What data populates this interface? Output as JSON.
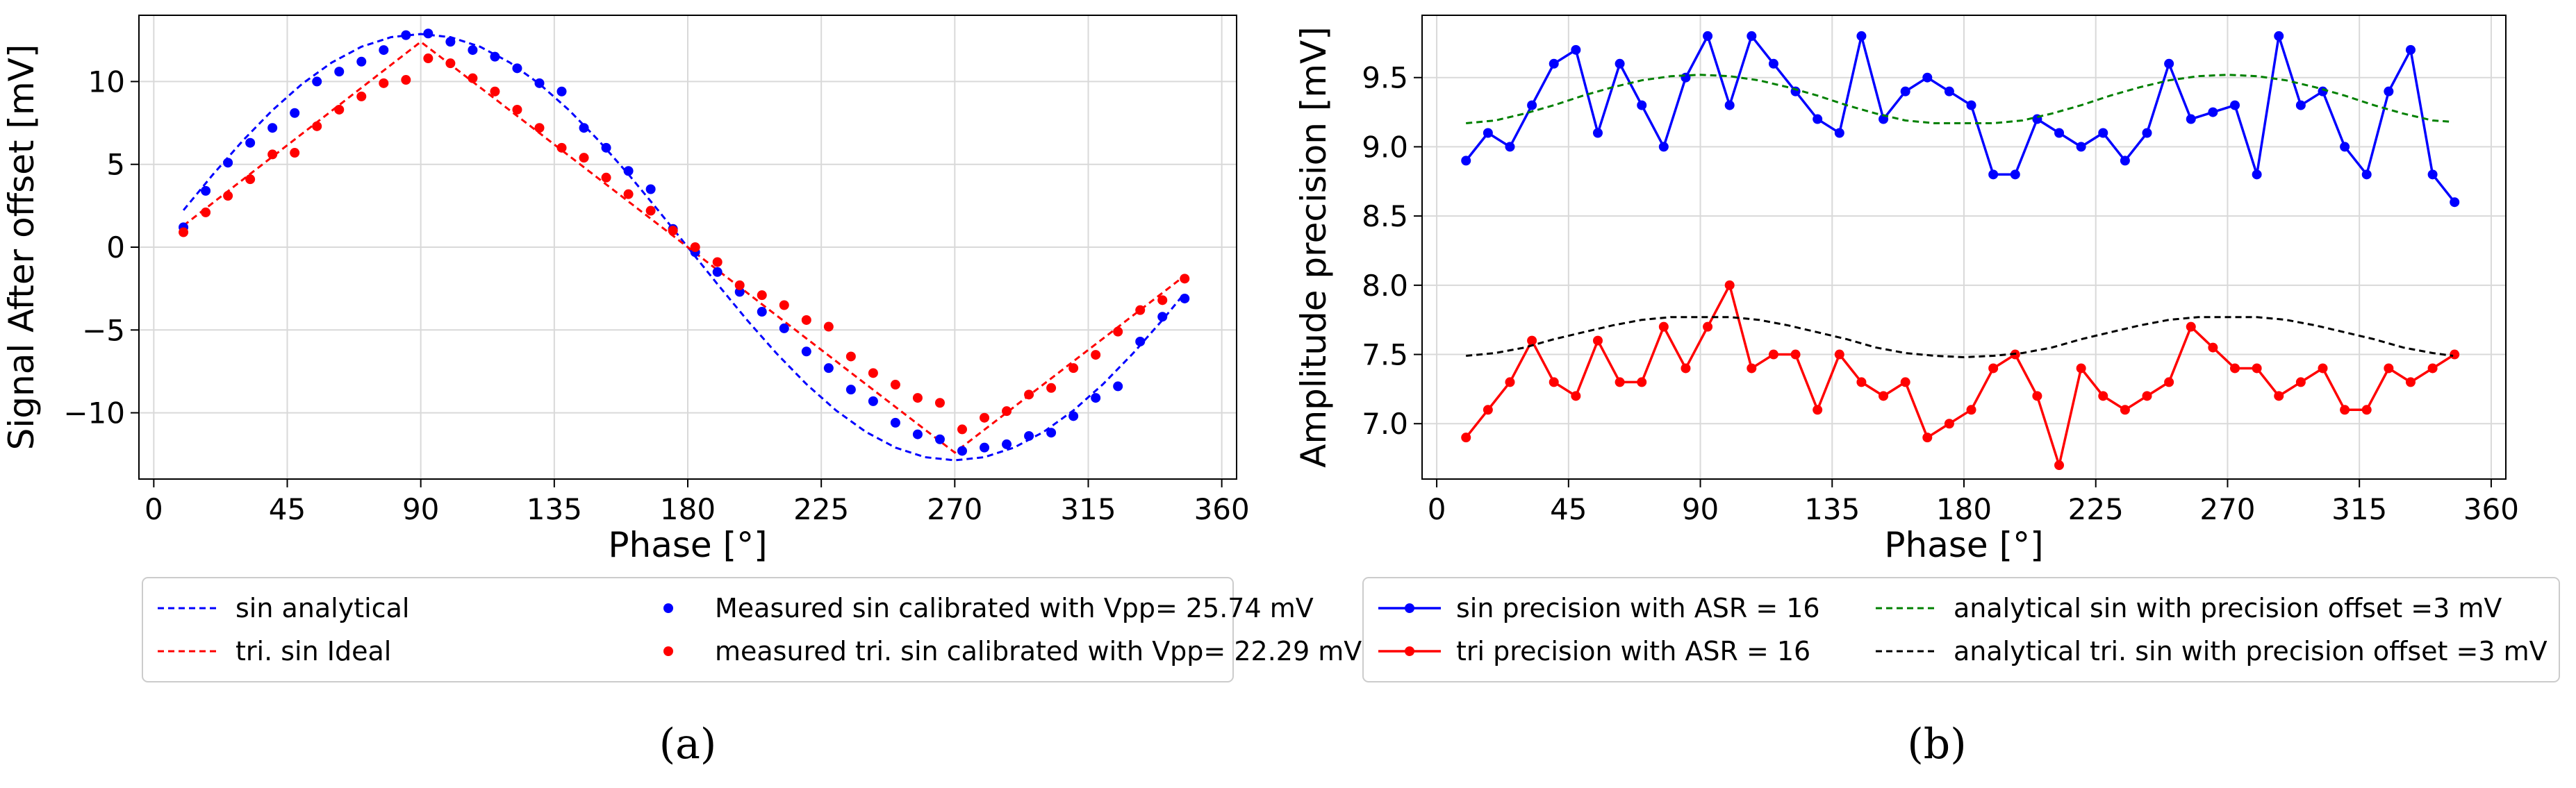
{
  "panels": [
    {
      "id": "a",
      "panel_label": "(a)",
      "colors": {
        "sin": "#0000ff",
        "tri": "#ff0000"
      },
      "legend": [
        {
          "label": "sin analytical",
          "style": "dashed",
          "color": "#0000ff"
        },
        {
          "label": "tri. sin Ideal",
          "style": "dashed",
          "color": "#ff0000"
        },
        {
          "label": "Measured sin calibrated with Vpp= 25.74 mV",
          "style": "dot",
          "color": "#0000ff"
        },
        {
          "label": "measured tri. sin calibrated with Vpp= 22.29 mV",
          "style": "dot",
          "color": "#ff0000"
        }
      ]
    },
    {
      "id": "b",
      "panel_label": "(b)",
      "colors": {
        "sin": "#0000ff",
        "tri": "#ff0000",
        "sin_analytical": "#008000",
        "tri_analytical": "#000000"
      },
      "legend": [
        {
          "label": "sin precision with ASR = 16",
          "style": "line-marker",
          "color": "#0000ff"
        },
        {
          "label": "tri precision with ASR = 16",
          "style": "line-marker",
          "color": "#ff0000"
        },
        {
          "label": "analytical sin with precision offset =3 mV",
          "style": "dashed",
          "color": "#008000"
        },
        {
          "label": "analytical tri. sin with precision offset =3 mV",
          "style": "dashed",
          "color": "#000000"
        }
      ]
    }
  ],
  "chart_data": [
    {
      "type": "line",
      "title": "",
      "xlabel": "Phase [°]",
      "ylabel": "Signal After offset [mV]",
      "xlim": [
        -5,
        365
      ],
      "ylim": [
        -14,
        14
      ],
      "xticks": [
        0,
        45,
        90,
        135,
        180,
        225,
        270,
        315,
        360
      ],
      "yticks": [
        -10,
        -5,
        0,
        5,
        10
      ],
      "grid": true,
      "series": [
        {
          "name": "sin analytical",
          "style": "dashed",
          "x": [
            10,
            20,
            30,
            40,
            50,
            60,
            70,
            80,
            90,
            100,
            110,
            120,
            130,
            140,
            150,
            160,
            170,
            180,
            190,
            200,
            210,
            220,
            230,
            240,
            250,
            260,
            270,
            280,
            290,
            300,
            310,
            320,
            330,
            340,
            347
          ],
          "y": [
            2.23,
            4.4,
            6.43,
            8.27,
            9.86,
            11.15,
            12.1,
            12.68,
            12.87,
            12.68,
            12.1,
            11.15,
            9.86,
            8.27,
            6.43,
            4.4,
            2.23,
            0,
            -2.23,
            -4.4,
            -6.43,
            -8.27,
            -9.86,
            -11.15,
            -12.1,
            -12.68,
            -12.87,
            -12.68,
            -12.1,
            -11.15,
            -9.86,
            -8.27,
            -6.43,
            -4.4,
            -2.89
          ]
        },
        {
          "name": "tri. sin Ideal",
          "style": "dashed",
          "x": [
            10,
            90,
            270,
            347
          ],
          "y": [
            1.3,
            12.4,
            -12.4,
            -1.8
          ]
        },
        {
          "name": "Measured sin calibrated with Vpp= 25.74 mV",
          "style": "dot",
          "x": [
            10,
            17.5,
            25,
            32.5,
            40,
            47.5,
            55,
            62.5,
            70,
            77.5,
            85,
            92.5,
            100,
            107.5,
            115,
            122.5,
            130,
            137.5,
            145,
            152.5,
            160,
            167.5,
            175,
            182.5,
            190,
            197.5,
            205,
            212.5,
            220,
            227.5,
            235,
            242.5,
            250,
            257.5,
            265,
            272.5,
            280,
            287.5,
            295,
            302.5,
            310,
            317.5,
            325,
            332.5,
            340,
            347.5
          ],
          "y": [
            1.2,
            3.4,
            5.1,
            6.3,
            7.2,
            8.1,
            10.0,
            10.6,
            11.2,
            11.9,
            12.8,
            12.9,
            12.4,
            11.9,
            11.5,
            10.8,
            9.9,
            9.4,
            7.2,
            6.0,
            4.6,
            3.5,
            1.1,
            -0.3,
            -1.5,
            -2.7,
            -3.9,
            -4.9,
            -6.3,
            -7.3,
            -8.6,
            -9.3,
            -10.6,
            -11.3,
            -11.6,
            -12.3,
            -12.1,
            -11.9,
            -11.4,
            -11.2,
            -10.2,
            -9.1,
            -8.4,
            -5.7,
            -4.2,
            -3.1
          ]
        },
        {
          "name": "measured tri. sin calibrated with Vpp= 22.29 mV",
          "style": "dot",
          "x": [
            10,
            17.5,
            25,
            32.5,
            40,
            47.5,
            55,
            62.5,
            70,
            77.5,
            85,
            92.5,
            100,
            107.5,
            115,
            122.5,
            130,
            137.5,
            145,
            152.5,
            160,
            167.5,
            175,
            182.5,
            190,
            197.5,
            205,
            212.5,
            220,
            227.5,
            235,
            242.5,
            250,
            257.5,
            265,
            272.5,
            280,
            287.5,
            295,
            302.5,
            310,
            317.5,
            325,
            332.5,
            340,
            347.5
          ],
          "y": [
            0.9,
            2.1,
            3.1,
            4.1,
            5.6,
            5.7,
            7.3,
            8.3,
            9.1,
            9.9,
            10.1,
            11.4,
            11.1,
            10.2,
            9.4,
            8.3,
            7.2,
            6.0,
            5.4,
            4.2,
            3.2,
            2.2,
            1.0,
            0.0,
            -0.9,
            -2.3,
            -2.9,
            -3.5,
            -4.4,
            -4.8,
            -6.6,
            -7.6,
            -8.3,
            -9.1,
            -9.4,
            -11.0,
            -10.3,
            -9.9,
            -8.9,
            -8.5,
            -7.3,
            -6.5,
            -5.1,
            -3.8,
            -3.2,
            -1.9
          ]
        }
      ]
    },
    {
      "type": "line",
      "title": "",
      "xlabel": "Phase [°]",
      "ylabel": "Amplitude precision [mV]",
      "xlim": [
        -5,
        365
      ],
      "ylim": [
        6.6,
        9.95
      ],
      "xticks": [
        0,
        45,
        90,
        135,
        180,
        225,
        270,
        315,
        360
      ],
      "yticks": [
        7.0,
        7.5,
        8.0,
        8.5,
        9.0,
        9.5
      ],
      "grid": true,
      "series": [
        {
          "name": "sin precision with ASR = 16",
          "style": "line-marker",
          "x": [
            10,
            17.5,
            25,
            32.5,
            40,
            47.5,
            55,
            62.5,
            70,
            77.5,
            85,
            92.5,
            100,
            107.5,
            115,
            122.5,
            130,
            137.5,
            145,
            152.5,
            160,
            167.5,
            175,
            182.5,
            190,
            197.5,
            205,
            212.5,
            220,
            227.5,
            235,
            242.5,
            250,
            257.5,
            265,
            272.5,
            280,
            287.5,
            295,
            302.5,
            310,
            317.5,
            325,
            332.5,
            340,
            347.5
          ],
          "y": [
            8.9,
            9.1,
            9.0,
            9.3,
            9.6,
            9.7,
            9.1,
            9.6,
            9.3,
            9.0,
            9.5,
            9.8,
            9.3,
            9.8,
            9.6,
            9.4,
            9.2,
            9.1,
            9.8,
            9.2,
            9.4,
            9.5,
            9.4,
            9.3,
            8.8,
            8.8,
            9.2,
            9.1,
            9.0,
            9.1,
            8.9,
            9.1,
            9.6,
            9.2,
            9.25,
            9.3,
            8.8,
            9.8,
            9.3,
            9.4,
            9.0,
            8.8,
            9.4,
            9.7,
            8.8,
            8.6
          ]
        },
        {
          "name": "tri precision with ASR = 16",
          "style": "line-marker",
          "x": [
            10,
            17.5,
            25,
            32.5,
            40,
            47.5,
            55,
            62.5,
            70,
            77.5,
            85,
            92.5,
            100,
            107.5,
            115,
            122.5,
            130,
            137.5,
            145,
            152.5,
            160,
            167.5,
            175,
            182.5,
            190,
            197.5,
            205,
            212.5,
            220,
            227.5,
            235,
            242.5,
            250,
            257.5,
            265,
            272.5,
            280,
            287.5,
            295,
            302.5,
            310,
            317.5,
            325,
            332.5,
            340,
            347.5
          ],
          "y": [
            6.9,
            7.1,
            7.3,
            7.6,
            7.3,
            7.2,
            7.6,
            7.3,
            7.3,
            7.7,
            7.4,
            7.7,
            8.0,
            7.4,
            7.5,
            7.5,
            7.1,
            7.5,
            7.3,
            7.2,
            7.3,
            6.9,
            7.0,
            7.1,
            7.4,
            7.5,
            7.2,
            6.7,
            7.4,
            7.2,
            7.1,
            7.2,
            7.3,
            7.7,
            7.55,
            7.4,
            7.4,
            7.2,
            7.3,
            7.4,
            7.1,
            7.1,
            7.4,
            7.3,
            7.4,
            7.5
          ]
        },
        {
          "name": "analytical sin with precision offset =3 mV",
          "style": "dashed",
          "x": [
            10,
            20,
            30,
            40,
            50,
            60,
            70,
            80,
            90,
            100,
            110,
            120,
            130,
            140,
            150,
            160,
            170,
            180,
            190,
            200,
            210,
            220,
            230,
            240,
            250,
            260,
            270,
            280,
            290,
            300,
            310,
            320,
            330,
            340,
            347
          ],
          "y": [
            9.17,
            9.19,
            9.24,
            9.3,
            9.37,
            9.43,
            9.48,
            9.51,
            9.52,
            9.51,
            9.48,
            9.43,
            9.37,
            9.3,
            9.24,
            9.19,
            9.17,
            9.17,
            9.17,
            9.19,
            9.24,
            9.3,
            9.37,
            9.43,
            9.48,
            9.51,
            9.52,
            9.51,
            9.48,
            9.43,
            9.37,
            9.3,
            9.24,
            9.19,
            9.18
          ]
        },
        {
          "name": "analytical tri. sin with precision offset =3 mV",
          "style": "dashed",
          "x": [
            10,
            20,
            30,
            40,
            50,
            60,
            70,
            80,
            90,
            100,
            110,
            120,
            130,
            140,
            150,
            160,
            170,
            180,
            190,
            200,
            210,
            220,
            230,
            240,
            250,
            260,
            270,
            280,
            290,
            300,
            310,
            320,
            330,
            340,
            347
          ],
          "y": [
            7.49,
            7.51,
            7.55,
            7.61,
            7.66,
            7.71,
            7.75,
            7.77,
            7.77,
            7.77,
            7.75,
            7.71,
            7.66,
            7.61,
            7.55,
            7.51,
            7.49,
            7.48,
            7.49,
            7.51,
            7.55,
            7.61,
            7.66,
            7.71,
            7.75,
            7.77,
            7.77,
            7.77,
            7.75,
            7.71,
            7.66,
            7.61,
            7.55,
            7.51,
            7.49
          ]
        }
      ]
    }
  ]
}
